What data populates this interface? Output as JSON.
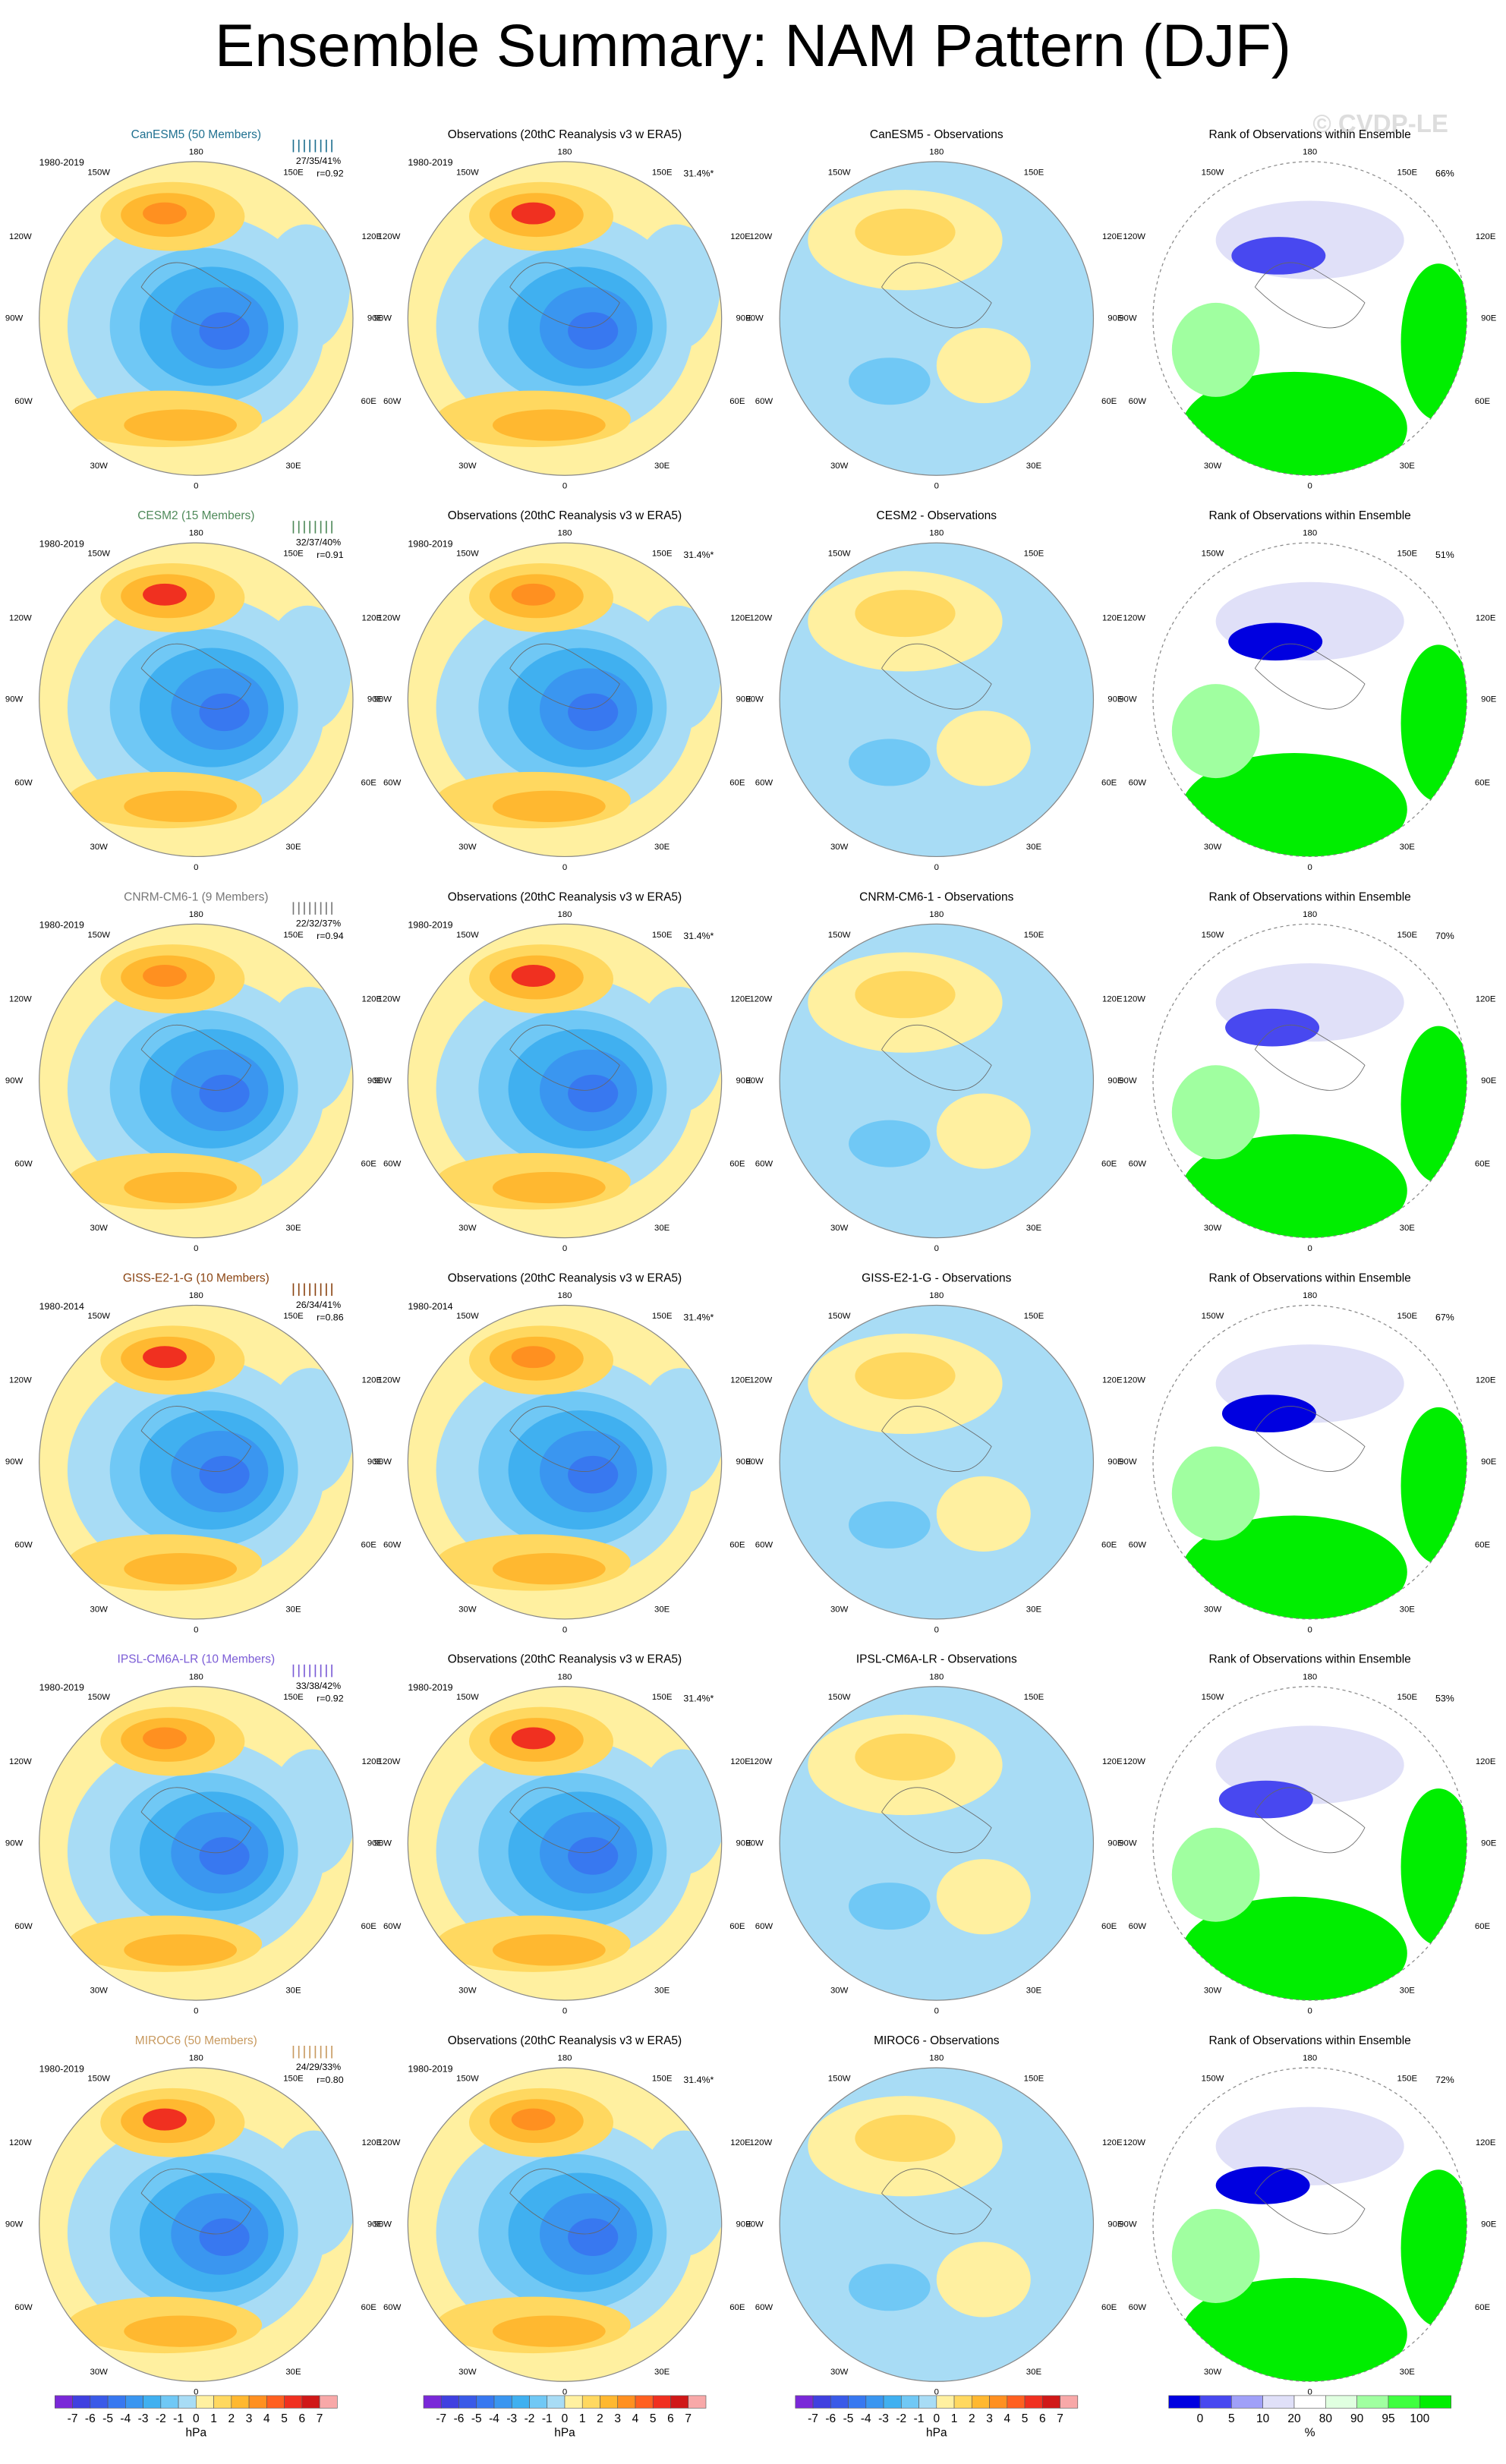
{
  "title": "Ensemble Summary: NAM Pattern (DJF)",
  "watermark": "© CVDP-LE",
  "lon_labels": [
    "180",
    "150W",
    "150E",
    "120W",
    "120E",
    "90W",
    "90E",
    "60W",
    "60E",
    "30W",
    "30E",
    "0"
  ],
  "obs_title": "Observations (20thC Reanalysis v3 w ERA5)",
  "obs_pct": "31.4%*",
  "rank_title": "Rank of Observations within Ensemble",
  "rows": [
    {
      "model_title": "CanESM5 (50 Members)",
      "model_color": "#1f7090",
      "period": "1980-2019",
      "stats": "27/35/41%",
      "r": "r=0.92",
      "obs_period": "1980-2019",
      "diff_title": "CanESM5 - Observations",
      "rank_pct": "66%"
    },
    {
      "model_title": "CESM2 (15 Members)",
      "model_color": "#4f8a5a",
      "period": "1980-2019",
      "stats": "32/37/40%",
      "r": "r=0.91",
      "obs_period": "1980-2019",
      "diff_title": "CESM2 - Observations",
      "rank_pct": "51%"
    },
    {
      "model_title": "CNRM-CM6-1 (9 Members)",
      "model_color": "#777777",
      "period": "1980-2019",
      "stats": "22/32/37%",
      "r": "r=0.94",
      "obs_period": "1980-2019",
      "diff_title": "CNRM-CM6-1 - Observations",
      "rank_pct": "70%"
    },
    {
      "model_title": "GISS-E2-1-G (10 Members)",
      "model_color": "#8b4513",
      "period": "1980-2014",
      "stats": "26/34/41%",
      "r": "r=0.86",
      "obs_period": "1980-2014",
      "diff_title": "GISS-E2-1-G - Observations",
      "rank_pct": "67%"
    },
    {
      "model_title": "IPSL-CM6A-LR (10 Members)",
      "model_color": "#7b5cd6",
      "period": "1980-2019",
      "stats": "33/38/42%",
      "r": "r=0.92",
      "obs_period": "1980-2019",
      "diff_title": "IPSL-CM6A-LR - Observations",
      "rank_pct": "53%"
    },
    {
      "model_title": "MIROC6 (50 Members)",
      "model_color": "#c89a60",
      "period": "1980-2019",
      "stats": "24/29/33%",
      "r": "r=0.80",
      "obs_period": "1980-2019",
      "diff_title": "MIROC6 - Observations",
      "rank_pct": "72%"
    }
  ],
  "colorbar": {
    "ticks": [
      -7,
      -6,
      -5,
      -4,
      -3,
      -2,
      -1,
      0,
      1,
      2,
      3,
      4,
      5,
      6,
      7
    ],
    "unit": "hPa",
    "colors": [
      "#7a28d8",
      "#4040e0",
      "#3a5ae8",
      "#3878f0",
      "#3a96f0",
      "#40b0f0",
      "#70c8f5",
      "#a8dcf5",
      "#fff0a0",
      "#ffd860",
      "#ffb830",
      "#ff9020",
      "#ff6020",
      "#f03020",
      "#d01818",
      "#f8a8a8"
    ]
  },
  "rank_colorbar": {
    "ticks": [
      0,
      5,
      10,
      20,
      80,
      90,
      95,
      100
    ],
    "unit": "%",
    "colors": [
      "#0000e0",
      "#4848f0",
      "#a0a0f8",
      "#e0e0f8",
      "#ffffff",
      "#e0ffe0",
      "#a0ffa0",
      "#40ff40",
      "#00ee00"
    ]
  }
}
